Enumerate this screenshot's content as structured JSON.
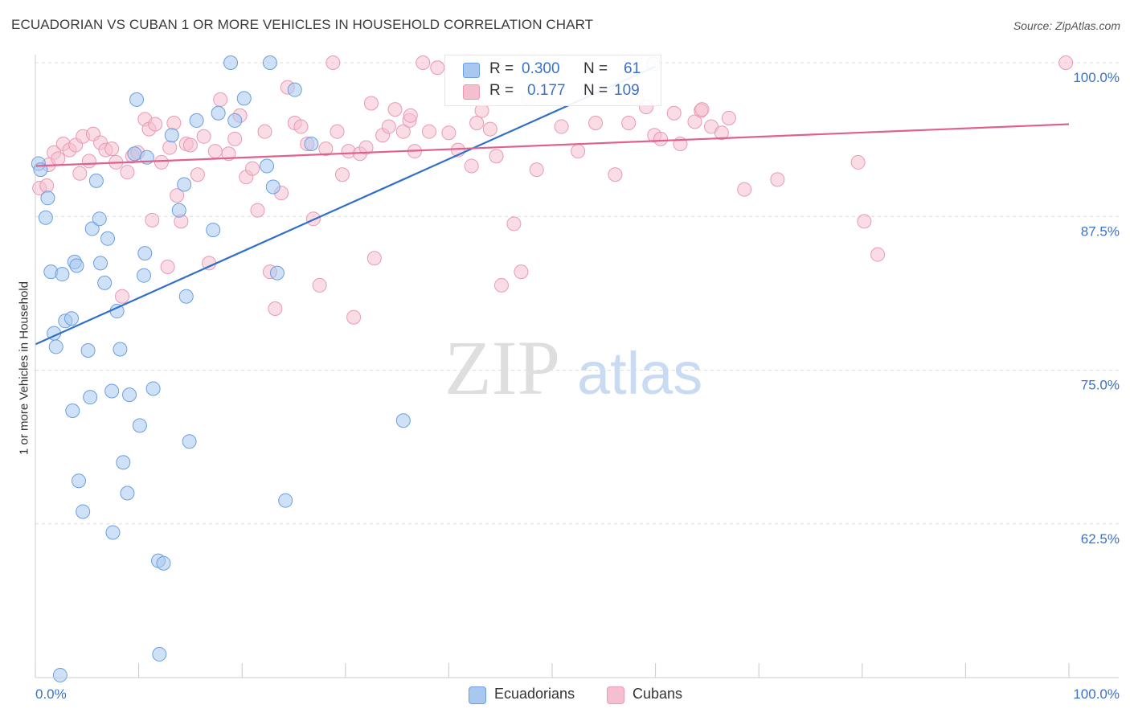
{
  "title": "ECUADORIAN VS CUBAN 1 OR MORE VEHICLES IN HOUSEHOLD CORRELATION CHART",
  "source": "Source: ZipAtlas.com",
  "watermark": {
    "zip": "ZIP",
    "atlas": "atlas"
  },
  "colors": {
    "blue_fill": "#a8c8f0",
    "blue_stroke": "#6b9fe0",
    "blue_line": "#2f6fcc",
    "pink_fill": "#f6bfd0",
    "pink_stroke": "#e89ab4",
    "pink_line": "#e0608e",
    "tick_label": "#3b72c8",
    "grid": "#dcdcdc"
  },
  "legend": {
    "row1": {
      "r_key": "R =",
      "r_val": "0.300",
      "n_key": "N =",
      "n_val": "61"
    },
    "row2": {
      "r_key": "R =",
      "r_val": "0.177",
      "n_key": "N =",
      "n_val": "109"
    }
  },
  "bottom_legend": {
    "series1": "Ecuadorians",
    "series2": "Cubans"
  },
  "chart_data": {
    "type": "scatter",
    "title": "ECUADORIAN VS CUBAN 1 OR MORE VEHICLES IN HOUSEHOLD CORRELATION CHART",
    "xlabel": "",
    "ylabel": "1 or more Vehicles in Household",
    "xlim": [
      0,
      100
    ],
    "ylim": [
      50,
      100
    ],
    "x_tick_labels": [
      "0.0%",
      "100.0%"
    ],
    "y_tick_labels": [
      "100.0%",
      "87.5%",
      "75.0%",
      "62.5%"
    ],
    "y_tick_values": [
      100,
      87.5,
      75,
      62.5
    ],
    "grid": true,
    "legend_position": "top-center",
    "series": [
      {
        "name": "Ecuadorians",
        "R": 0.3,
        "N": 61,
        "trend": {
          "x": [
            0,
            60
          ],
          "y": [
            77.1,
            99.7
          ]
        },
        "points": [
          [
            0.3,
            91.8
          ],
          [
            0.5,
            91.3
          ],
          [
            1.0,
            87.4
          ],
          [
            1.2,
            89.0
          ],
          [
            1.5,
            83.0
          ],
          [
            1.8,
            78.0
          ],
          [
            2.0,
            76.9
          ],
          [
            2.6,
            82.8
          ],
          [
            2.9,
            79.0
          ],
          [
            3.5,
            79.2
          ],
          [
            3.6,
            71.7
          ],
          [
            3.8,
            83.8
          ],
          [
            4.0,
            83.5
          ],
          [
            4.2,
            66.0
          ],
          [
            4.6,
            63.5
          ],
          [
            5.1,
            76.6
          ],
          [
            5.3,
            72.8
          ],
          [
            5.5,
            86.5
          ],
          [
            5.9,
            90.4
          ],
          [
            6.2,
            87.3
          ],
          [
            6.3,
            83.7
          ],
          [
            6.7,
            82.1
          ],
          [
            7.0,
            85.7
          ],
          [
            7.4,
            73.3
          ],
          [
            7.5,
            61.8
          ],
          [
            7.9,
            79.8
          ],
          [
            8.2,
            76.7
          ],
          [
            8.5,
            67.5
          ],
          [
            8.9,
            65.0
          ],
          [
            9.1,
            73.0
          ],
          [
            9.6,
            92.6
          ],
          [
            9.8,
            97.0
          ],
          [
            10.1,
            70.5
          ],
          [
            10.5,
            82.7
          ],
          [
            10.6,
            84.5
          ],
          [
            10.8,
            92.3
          ],
          [
            11.4,
            73.5
          ],
          [
            11.9,
            59.5
          ],
          [
            12.0,
            51.9
          ],
          [
            12.4,
            59.3
          ],
          [
            13.2,
            94.1
          ],
          [
            13.9,
            88.0
          ],
          [
            14.4,
            90.1
          ],
          [
            14.6,
            81.0
          ],
          [
            14.9,
            69.2
          ],
          [
            15.6,
            95.3
          ],
          [
            17.2,
            86.4
          ],
          [
            17.7,
            95.9
          ],
          [
            18.9,
            100.0
          ],
          [
            19.3,
            95.3
          ],
          [
            20.2,
            97.1
          ],
          [
            22.4,
            91.6
          ],
          [
            22.7,
            100.0
          ],
          [
            23.0,
            89.9
          ],
          [
            23.4,
            82.9
          ],
          [
            25.1,
            97.8
          ],
          [
            26.7,
            93.4
          ],
          [
            35.6,
            70.9
          ],
          [
            59.8,
            99.9
          ],
          [
            2.4,
            50.2
          ],
          [
            24.2,
            64.4
          ]
        ]
      },
      {
        "name": "Cubans",
        "R": 0.177,
        "N": 109,
        "trend": {
          "x": [
            0,
            100
          ],
          "y": [
            91.6,
            95.0
          ]
        },
        "points": [
          [
            0.4,
            89.8
          ],
          [
            1.3,
            91.7
          ],
          [
            1.8,
            92.7
          ],
          [
            2.2,
            92.2
          ],
          [
            2.7,
            93.4
          ],
          [
            3.3,
            92.9
          ],
          [
            3.9,
            93.3
          ],
          [
            4.3,
            91.0
          ],
          [
            4.6,
            94.0
          ],
          [
            5.2,
            92.0
          ],
          [
            5.6,
            94.2
          ],
          [
            6.3,
            93.5
          ],
          [
            6.8,
            92.9
          ],
          [
            7.4,
            93.0
          ],
          [
            7.8,
            91.9
          ],
          [
            8.4,
            81.0
          ],
          [
            8.9,
            91.1
          ],
          [
            9.4,
            92.4
          ],
          [
            9.9,
            92.7
          ],
          [
            10.6,
            95.4
          ],
          [
            11.0,
            94.6
          ],
          [
            11.3,
            87.2
          ],
          [
            11.6,
            95.0
          ],
          [
            12.2,
            91.9
          ],
          [
            12.8,
            83.4
          ],
          [
            13.0,
            93.1
          ],
          [
            13.4,
            95.1
          ],
          [
            13.7,
            89.2
          ],
          [
            14.1,
            87.1
          ],
          [
            14.6,
            93.4
          ],
          [
            15.0,
            93.3
          ],
          [
            15.7,
            90.9
          ],
          [
            16.3,
            94.0
          ],
          [
            16.8,
            83.7
          ],
          [
            17.4,
            92.8
          ],
          [
            17.9,
            97.0
          ],
          [
            18.7,
            92.6
          ],
          [
            19.3,
            93.8
          ],
          [
            19.8,
            95.7
          ],
          [
            20.4,
            90.7
          ],
          [
            21.0,
            91.4
          ],
          [
            21.5,
            88.0
          ],
          [
            22.2,
            94.4
          ],
          [
            22.7,
            83.0
          ],
          [
            23.2,
            80.0
          ],
          [
            23.8,
            89.4
          ],
          [
            24.4,
            98.0
          ],
          [
            25.1,
            95.1
          ],
          [
            25.7,
            94.8
          ],
          [
            26.3,
            93.4
          ],
          [
            26.9,
            87.3
          ],
          [
            27.5,
            81.9
          ],
          [
            28.1,
            93.0
          ],
          [
            28.8,
            100.0
          ],
          [
            29.2,
            94.4
          ],
          [
            29.7,
            90.9
          ],
          [
            30.3,
            92.8
          ],
          [
            30.8,
            79.3
          ],
          [
            31.4,
            92.6
          ],
          [
            32.0,
            93.1
          ],
          [
            32.5,
            96.7
          ],
          [
            32.8,
            84.1
          ],
          [
            33.6,
            94.1
          ],
          [
            34.2,
            94.8
          ],
          [
            34.8,
            96.2
          ],
          [
            35.6,
            94.4
          ],
          [
            36.2,
            95.3
          ],
          [
            36.7,
            92.8
          ],
          [
            37.5,
            100.0
          ],
          [
            38.1,
            94.4
          ],
          [
            38.9,
            99.6
          ],
          [
            40.0,
            94.3
          ],
          [
            40.9,
            92.9
          ],
          [
            42.2,
            91.6
          ],
          [
            42.7,
            95.1
          ],
          [
            43.2,
            96.1
          ],
          [
            44.0,
            94.6
          ],
          [
            44.6,
            92.4
          ],
          [
            45.1,
            81.9
          ],
          [
            46.3,
            86.9
          ],
          [
            47.0,
            83.0
          ],
          [
            47.7,
            97.1
          ],
          [
            48.5,
            91.3
          ],
          [
            49.1,
            98.0
          ],
          [
            50.9,
            94.8
          ],
          [
            52.5,
            92.8
          ],
          [
            54.2,
            95.1
          ],
          [
            56.1,
            90.9
          ],
          [
            57.4,
            95.1
          ],
          [
            58.2,
            97.1
          ],
          [
            59.1,
            96.4
          ],
          [
            59.9,
            94.1
          ],
          [
            60.5,
            93.8
          ],
          [
            61.8,
            95.9
          ],
          [
            62.4,
            93.4
          ],
          [
            63.8,
            95.2
          ],
          [
            64.4,
            96.1
          ],
          [
            65.4,
            94.8
          ],
          [
            66.4,
            94.3
          ],
          [
            67.1,
            95.5
          ],
          [
            68.6,
            89.7
          ],
          [
            79.6,
            91.9
          ],
          [
            80.2,
            87.1
          ],
          [
            81.5,
            84.4
          ],
          [
            99.7,
            100.0
          ],
          [
            64.5,
            96.2
          ],
          [
            71.8,
            90.5
          ],
          [
            36.3,
            95.7
          ],
          [
            1.1,
            90.0
          ]
        ]
      }
    ]
  }
}
